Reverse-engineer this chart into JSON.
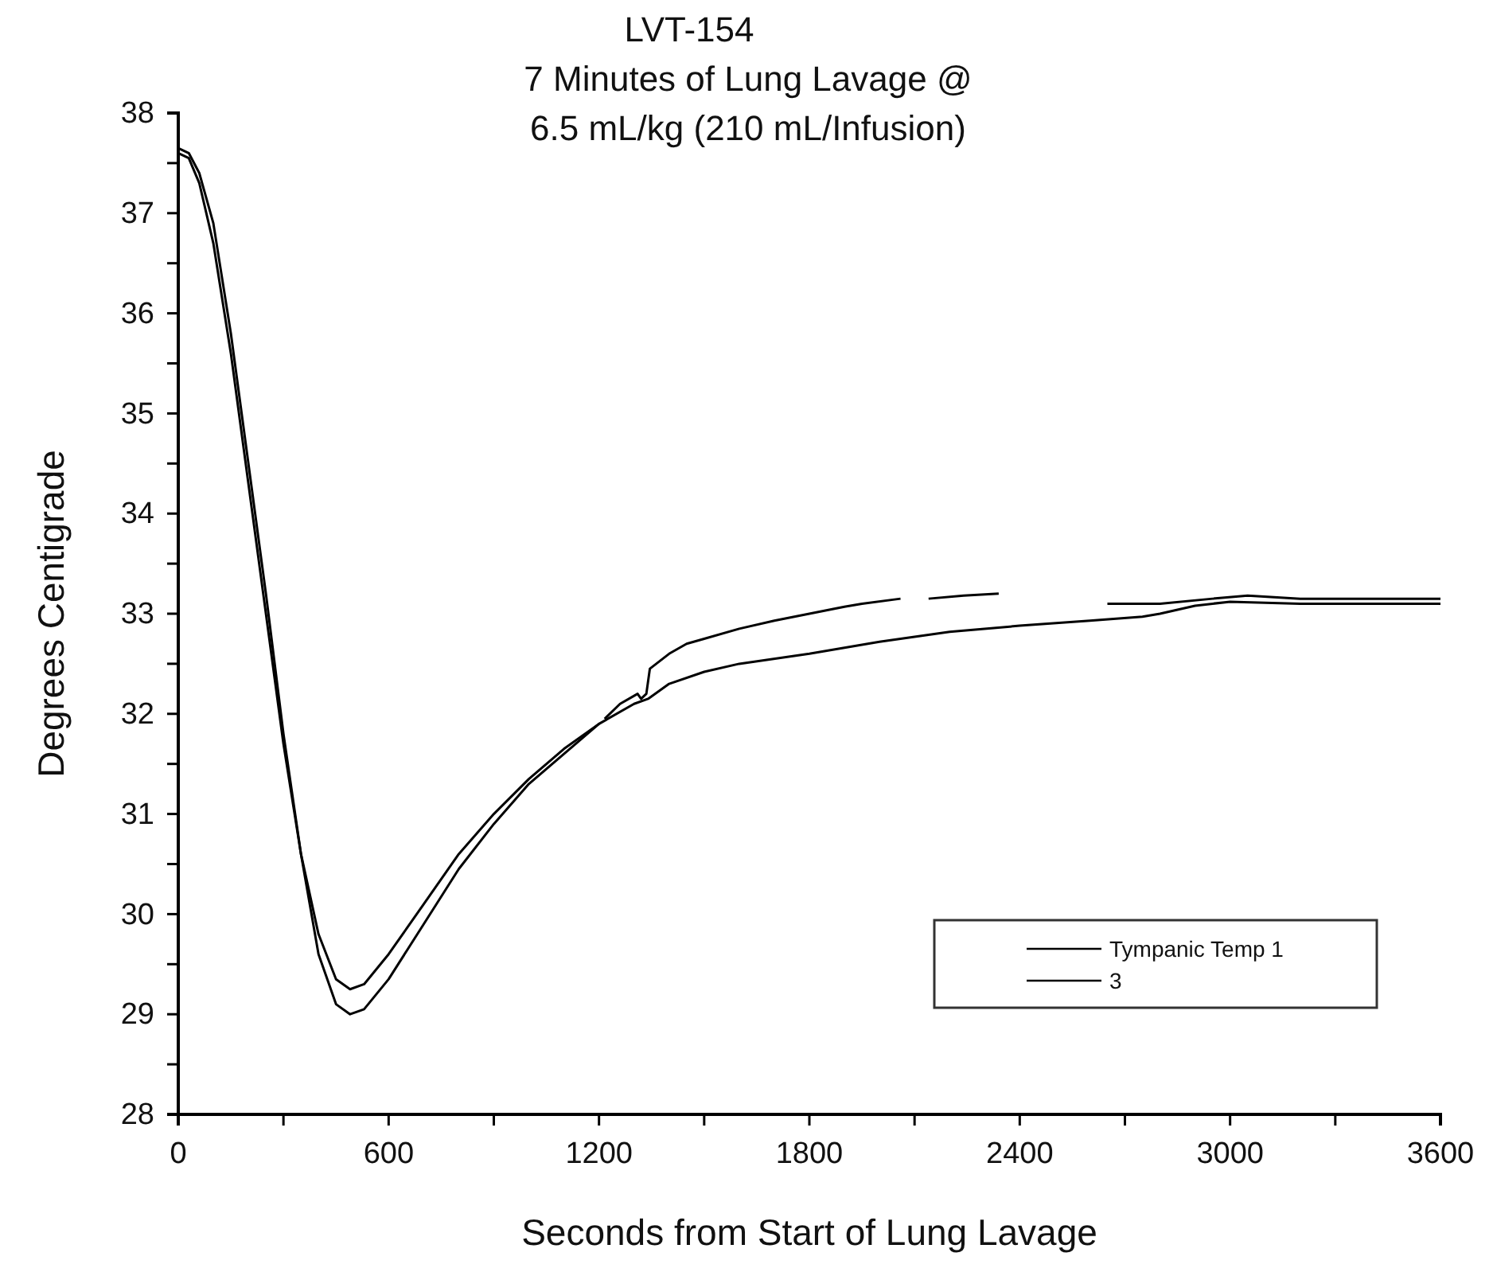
{
  "chart_data": {
    "type": "line",
    "title": "LVT-154\n7 Minutes of Lung Lavage @\n6.5 mL/kg (210 mL/Infusion)",
    "xlabel": "Seconds from Start of Lung Lavage",
    "ylabel": "Degrees Centigrade",
    "xlim": [
      0,
      3600
    ],
    "ylim": [
      28,
      38
    ],
    "xticks": [
      0,
      {
        "value": 300,
        "label": null
      },
      600,
      {
        "value": 900,
        "label": null
      },
      1200,
      {
        "value": 1500,
        "label": null
      },
      1800,
      {
        "value": 2100,
        "label": null
      },
      2400,
      {
        "value": 2700,
        "label": null
      },
      3000,
      {
        "value": 3300,
        "label": null
      },
      3600
    ],
    "yticks": [
      28,
      {
        "value": 28.5,
        "label": null
      },
      29,
      {
        "value": 29.5,
        "label": null
      },
      30,
      {
        "value": 30.5,
        "label": null
      },
      31,
      {
        "value": 31.5,
        "label": null
      },
      32,
      {
        "value": 32.5,
        "label": null
      },
      33,
      {
        "value": 33.5,
        "label": null
      },
      34,
      {
        "value": 34.5,
        "label": null
      },
      35,
      {
        "value": 35.5,
        "label": null
      },
      36,
      {
        "value": 36.5,
        "label": null
      },
      37,
      {
        "value": 37.5,
        "label": null
      },
      38
    ],
    "grid": false,
    "legend": "bottom right",
    "marker": "none",
    "line_style": "solid",
    "series": [
      {
        "name": "Tympanic Temp 1",
        "color": "#000000",
        "x": [
          0,
          30,
          60,
          100,
          150,
          200,
          250,
          300,
          350,
          400,
          450,
          490,
          530,
          600,
          700,
          800,
          900,
          1000,
          1100,
          1200,
          1212,
          1216,
          1260,
          1310,
          1320,
          1335,
          1345,
          1400,
          1450,
          1500,
          1600,
          1700,
          1800,
          1900,
          1950,
          2060,
          2100,
          2140,
          2240,
          2340,
          2400,
          2650,
          2800,
          2950,
          3050,
          3200,
          3600
        ],
        "values": [
          37.65,
          37.6,
          37.4,
          36.9,
          35.8,
          34.5,
          33.2,
          31.8,
          30.6,
          29.6,
          29.1,
          29.0,
          29.05,
          29.35,
          29.9,
          30.45,
          30.9,
          31.3,
          31.6,
          31.9,
          null,
          31.95,
          32.1,
          32.2,
          32.15,
          32.2,
          32.45,
          32.6,
          32.7,
          32.75,
          32.85,
          32.93,
          33.0,
          33.07,
          33.1,
          33.15,
          null,
          33.15,
          33.18,
          33.2,
          null,
          33.1,
          33.1,
          33.15,
          33.18,
          33.15,
          33.15
        ]
      },
      {
        "name": "3",
        "color": "#000000",
        "x": [
          0,
          30,
          60,
          100,
          150,
          200,
          250,
          300,
          350,
          400,
          450,
          490,
          530,
          600,
          700,
          800,
          900,
          1000,
          1100,
          1200,
          1300,
          1340,
          1400,
          1500,
          1600,
          1800,
          2000,
          2200,
          2400,
          2600,
          2750,
          2800,
          2900,
          3000,
          3200,
          3600
        ],
        "values": [
          37.6,
          37.55,
          37.3,
          36.7,
          35.6,
          34.3,
          33.0,
          31.7,
          30.6,
          29.8,
          29.35,
          29.25,
          29.3,
          29.6,
          30.1,
          30.6,
          31.0,
          31.35,
          31.65,
          31.9,
          32.1,
          32.15,
          32.3,
          32.42,
          32.5,
          32.6,
          32.72,
          32.82,
          32.88,
          32.93,
          32.97,
          33.0,
          33.08,
          33.12,
          33.1,
          33.1
        ]
      }
    ]
  }
}
